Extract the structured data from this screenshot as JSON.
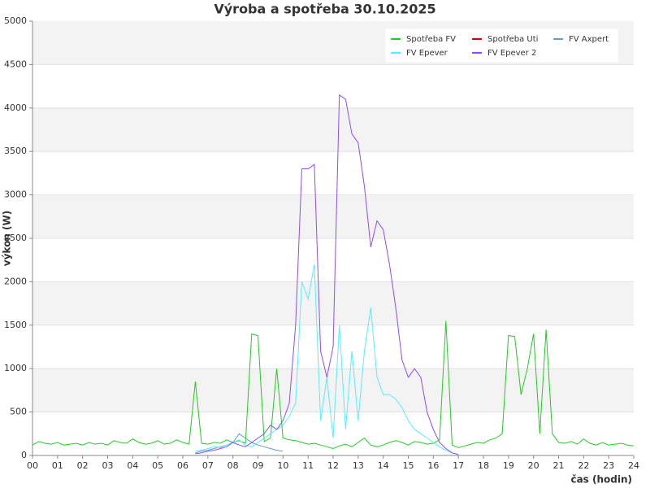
{
  "chart_data": {
    "type": "line",
    "title": "Výroba a spotřeba 30.10.2025",
    "xlabel": "čas (hodin)",
    "ylabel": "výkon (W)",
    "x": [
      0,
      0.25,
      0.5,
      0.75,
      1,
      1.25,
      1.5,
      1.75,
      2,
      2.25,
      2.5,
      2.75,
      3,
      3.25,
      3.5,
      3.75,
      4,
      4.25,
      4.5,
      4.75,
      5,
      5.25,
      5.5,
      5.75,
      6,
      6.25,
      6.5,
      6.75,
      7,
      7.25,
      7.5,
      7.75,
      8,
      8.25,
      8.5,
      8.75,
      9,
      9.25,
      9.5,
      9.75,
      10,
      10.25,
      10.5,
      10.75,
      11,
      11.25,
      11.5,
      11.75,
      12,
      12.25,
      12.5,
      12.75,
      13,
      13.25,
      13.5,
      13.75,
      14,
      14.25,
      14.5,
      14.75,
      15,
      15.25,
      15.5,
      15.75,
      16,
      16.25,
      16.5,
      16.75,
      17,
      17.25,
      17.5,
      17.75,
      18,
      18.25,
      18.5,
      18.75,
      19,
      19.25,
      19.5,
      19.75,
      20,
      20.25,
      20.5,
      20.75,
      21,
      21.25,
      21.5,
      21.75,
      22,
      22.25,
      22.5,
      22.75,
      23,
      23.25,
      23.5,
      23.75,
      24
    ],
    "series": [
      {
        "name": "Spotřeba FV",
        "color": "#22cc22",
        "values": [
          120,
          160,
          140,
          130,
          150,
          120,
          130,
          140,
          120,
          150,
          130,
          140,
          120,
          170,
          150,
          140,
          190,
          150,
          130,
          140,
          170,
          130,
          140,
          180,
          150,
          130,
          850,
          140,
          130,
          150,
          140,
          180,
          150,
          170,
          140,
          1400,
          1380,
          160,
          200,
          1000,
          200,
          180,
          170,
          150,
          130,
          140,
          120,
          100,
          80,
          110,
          130,
          100,
          150,
          200,
          120,
          100,
          120,
          150,
          170,
          150,
          120,
          160,
          150,
          130,
          140,
          180,
          1550,
          120,
          90,
          110,
          130,
          150,
          140,
          180,
          200,
          250,
          1380,
          1370,
          700,
          1000,
          1400,
          250,
          1450,
          250,
          150,
          140,
          160,
          130,
          190,
          140,
          120,
          150,
          120,
          130,
          140,
          120,
          110
        ]
      },
      {
        "name": "Spotřeba Uti",
        "color": "#cc0000",
        "values": [
          null,
          null,
          null,
          null,
          null,
          null,
          null,
          null,
          null,
          null,
          null,
          null,
          null,
          null,
          null,
          null,
          null,
          null,
          null,
          null,
          null,
          null,
          null,
          null,
          null,
          null,
          null,
          null,
          null,
          null,
          null,
          null,
          null,
          null,
          null,
          null,
          null,
          null,
          null,
          null,
          null,
          null,
          null,
          null,
          null,
          null,
          null,
          null,
          null,
          null,
          null,
          null,
          null,
          null,
          null,
          null,
          null,
          null,
          null,
          null,
          null,
          null,
          null,
          null,
          null,
          null,
          null,
          null,
          null,
          null,
          null,
          null,
          null,
          null,
          null,
          null,
          null,
          null,
          null,
          null,
          null,
          null,
          null,
          null,
          null,
          null,
          null,
          null,
          null,
          null,
          null,
          null,
          null,
          null,
          null,
          null,
          null
        ]
      },
      {
        "name": "FV Axpert",
        "color": "#6699cc",
        "values": [
          null,
          null,
          null,
          null,
          null,
          null,
          null,
          null,
          null,
          null,
          null,
          null,
          null,
          null,
          null,
          null,
          null,
          null,
          null,
          null,
          null,
          null,
          null,
          null,
          null,
          null,
          30,
          50,
          60,
          80,
          100,
          120,
          150,
          250,
          200,
          150,
          120,
          100,
          80,
          60,
          50,
          null,
          null,
          null,
          null,
          null,
          null,
          null,
          null,
          null,
          null,
          null,
          null,
          null,
          null,
          null,
          null,
          null,
          null,
          null,
          null,
          null,
          null,
          null,
          null,
          null,
          null,
          null,
          null,
          null,
          null,
          null,
          null,
          null,
          null,
          null,
          null,
          null,
          null,
          null,
          null,
          null,
          null,
          null,
          null,
          null,
          null,
          null,
          null,
          null,
          null,
          null,
          null,
          null,
          null,
          null,
          null
        ]
      },
      {
        "name": "FV Epever",
        "color": "#55eeff",
        "values": [
          null,
          null,
          null,
          null,
          null,
          null,
          null,
          null,
          null,
          null,
          null,
          null,
          null,
          null,
          null,
          null,
          null,
          null,
          null,
          null,
          null,
          null,
          null,
          null,
          null,
          null,
          50,
          60,
          80,
          100,
          90,
          120,
          150,
          180,
          120,
          100,
          150,
          200,
          250,
          300,
          350,
          450,
          600,
          2000,
          1800,
          2200,
          400,
          900,
          200,
          1500,
          300,
          1200,
          400,
          1200,
          1700,
          900,
          700,
          700,
          650,
          550,
          400,
          300,
          250,
          200,
          150,
          100,
          60,
          30,
          10,
          null,
          null,
          null,
          null,
          null,
          null,
          null,
          null,
          null,
          null,
          null,
          null,
          null,
          null,
          null,
          null,
          null,
          null,
          null,
          null,
          null,
          null,
          null,
          null,
          null,
          null,
          null,
          null
        ]
      },
      {
        "name": "FV Epever 2",
        "color": "#8c4cff",
        "values": [
          null,
          null,
          null,
          null,
          null,
          null,
          null,
          null,
          null,
          null,
          null,
          null,
          null,
          null,
          null,
          null,
          null,
          null,
          null,
          null,
          null,
          null,
          null,
          null,
          null,
          null,
          20,
          30,
          50,
          60,
          80,
          100,
          150,
          120,
          100,
          150,
          200,
          250,
          350,
          300,
          400,
          600,
          1500,
          3300,
          3300,
          3350,
          1200,
          900,
          1250,
          4150,
          4100,
          3700,
          3600,
          3100,
          2400,
          2700,
          2600,
          2200,
          1700,
          1100,
          900,
          1000,
          900,
          500,
          300,
          150,
          80,
          30,
          10,
          null,
          null,
          null,
          null,
          null,
          null,
          null,
          null,
          null,
          null,
          null,
          null,
          null,
          null,
          null,
          null,
          null,
          null,
          null,
          null,
          null,
          null,
          null,
          null,
          null,
          null,
          null,
          null
        ]
      }
    ],
    "xlim": [
      0,
      24
    ],
    "xticks": [
      {
        "value": 0,
        "label": "00"
      },
      {
        "value": 1,
        "label": "01"
      },
      {
        "value": 2,
        "label": "02"
      },
      {
        "value": 3,
        "label": "03"
      },
      {
        "value": 4,
        "label": "04"
      },
      {
        "value": 5,
        "label": "05"
      },
      {
        "value": 6,
        "label": "06"
      },
      {
        "value": 7,
        "label": "07"
      },
      {
        "value": 8,
        "label": "08"
      },
      {
        "value": 9,
        "label": "09"
      },
      10,
      11,
      12,
      13,
      14,
      15,
      16,
      17,
      18,
      19,
      20,
      21,
      22,
      23,
      24
    ],
    "ylim": [
      0,
      5000
    ],
    "yticks": [
      0,
      500,
      1000,
      1500,
      2000,
      2500,
      3000,
      3500,
      4000,
      4500,
      5000
    ],
    "grid": true,
    "legend": "upper right"
  }
}
